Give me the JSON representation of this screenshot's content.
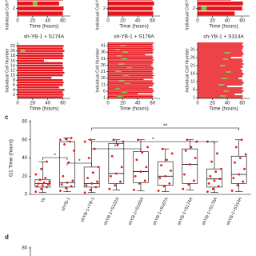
{
  "panel_labels": [
    "c",
    "d"
  ],
  "chart_data": [
    {
      "type": "timeline",
      "xlabel": "Time (hours)",
      "ylabel": "Individual Cell Number",
      "xlim": [
        0,
        70
      ],
      "xticks": [
        0,
        20,
        40,
        60
      ],
      "ylim": [
        0.5,
        8.5
      ],
      "yticks": [
        2,
        4
      ],
      "values": [
        60,
        61,
        55,
        60,
        62,
        60,
        58,
        61
      ],
      "green_start": [
        null,
        null,
        20,
        null,
        null,
        null,
        null,
        null
      ],
      "green_end": [
        null,
        null,
        26,
        null,
        null,
        null,
        null,
        null
      ]
    },
    {
      "type": "timeline",
      "xlabel": "Time (hours)",
      "ylabel": "Individual Cell Number",
      "xlim": [
        0,
        70
      ],
      "xticks": [
        0,
        20,
        40,
        60
      ],
      "ylim": [
        0.5,
        8.5
      ],
      "yticks": [
        2,
        4
      ],
      "values": [
        61,
        60,
        62,
        60,
        61,
        60,
        62,
        60
      ],
      "green_start": [
        null,
        null,
        null,
        null,
        null,
        null,
        null,
        null
      ],
      "green_end": [
        null,
        null,
        null,
        null,
        null,
        null,
        null,
        null
      ]
    },
    {
      "type": "timeline",
      "xlabel": "Time (hours)",
      "ylabel": "Individual Cell Number",
      "xlim": [
        0,
        70
      ],
      "xticks": [
        0,
        20,
        40,
        60
      ],
      "ylim": [
        0.5,
        8.5
      ],
      "yticks": [
        2,
        4
      ],
      "values": [
        50,
        60,
        61,
        45,
        60,
        62,
        60,
        61
      ],
      "green_start": [
        null,
        5,
        null,
        null,
        8,
        null,
        null,
        null
      ],
      "green_end": [
        null,
        12,
        null,
        null,
        14,
        null,
        null,
        null
      ]
    },
    {
      "type": "timeline",
      "title": "sh-YB-1 + S174A",
      "xlabel": "Time (hours)",
      "ylabel": "Individual Cell Number",
      "xlim": [
        0,
        70
      ],
      "xticks": [
        0,
        20,
        40,
        60
      ],
      "ylim": [
        0.5,
        23.5
      ],
      "yticks": [
        2,
        4,
        6,
        8,
        10,
        12,
        14,
        16,
        18,
        20,
        22
      ],
      "values": [
        60,
        61,
        60,
        62,
        55,
        60,
        61,
        60,
        45,
        60,
        62,
        60,
        61,
        60,
        60,
        35,
        60,
        61,
        60,
        62,
        60,
        61
      ],
      "green_start": [
        null,
        null,
        null,
        null,
        null,
        null,
        null,
        null,
        null,
        null,
        null,
        null,
        null,
        null,
        null,
        null,
        null,
        null,
        null,
        4,
        null,
        null
      ],
      "green_end": [
        null,
        null,
        null,
        null,
        null,
        null,
        null,
        null,
        null,
        null,
        null,
        null,
        null,
        null,
        null,
        null,
        null,
        null,
        null,
        10,
        null,
        null
      ]
    },
    {
      "type": "timeline",
      "title": "sh-YB-1 + S176A",
      "xlabel": "Time (hours)",
      "ylabel": "Individual Cell Number",
      "xlim": [
        0,
        70
      ],
      "xticks": [
        0,
        20,
        40,
        60
      ],
      "ylim": [
        0.5,
        43.5
      ],
      "yticks": [
        1,
        6,
        11,
        16,
        21,
        26,
        31,
        36,
        41
      ],
      "values": [
        60,
        61,
        60,
        40,
        60,
        62,
        61,
        60,
        55,
        60,
        61,
        62,
        60,
        60,
        48,
        61,
        60,
        62,
        60,
        61,
        60,
        60,
        62,
        61,
        60,
        58,
        60,
        61,
        60,
        62,
        60,
        61,
        60,
        50,
        60,
        61,
        60,
        62,
        60,
        61,
        60,
        60,
        62
      ],
      "green_start": [
        null,
        12,
        null,
        null,
        18,
        null,
        null,
        10,
        null,
        null,
        null,
        22,
        null,
        15,
        null,
        null,
        null,
        20,
        null,
        null,
        10,
        null,
        null,
        25,
        null,
        null,
        14,
        null,
        null,
        null,
        18,
        null,
        12,
        null,
        null,
        20,
        null,
        10,
        null,
        null,
        16,
        null,
        null
      ],
      "green_end": [
        null,
        20,
        null,
        null,
        26,
        null,
        null,
        16,
        null,
        null,
        null,
        30,
        null,
        22,
        null,
        null,
        null,
        28,
        null,
        null,
        18,
        null,
        null,
        32,
        null,
        null,
        22,
        null,
        null,
        null,
        26,
        null,
        18,
        null,
        null,
        27,
        null,
        16,
        null,
        null,
        24,
        null,
        null
      ]
    },
    {
      "type": "timeline",
      "title": "sh-YB-1 + S314A",
      "xlabel": "Time (hours)",
      "ylabel": "Individual Cell Number",
      "xlim": [
        0,
        70
      ],
      "xticks": [
        0,
        20,
        40,
        60
      ],
      "ylim": [
        0.5,
        35.5
      ],
      "yticks": [
        1,
        6,
        11,
        16,
        21,
        26,
        31
      ],
      "values": [
        60,
        61,
        50,
        60,
        62,
        60,
        61,
        40,
        60,
        62,
        61,
        60,
        55,
        60,
        61,
        62,
        60,
        60,
        58,
        61,
        60,
        62,
        60,
        61,
        60,
        45,
        60,
        62,
        61,
        60,
        60,
        61,
        62,
        60,
        61
      ],
      "green_start": [
        null,
        30,
        null,
        null,
        35,
        null,
        null,
        null,
        28,
        null,
        null,
        null,
        32,
        null,
        null,
        null,
        38,
        null,
        null,
        null,
        30,
        null,
        null,
        null,
        34,
        null,
        null,
        null,
        36,
        null,
        null,
        null,
        null,
        null,
        null
      ],
      "green_end": [
        null,
        38,
        null,
        null,
        42,
        null,
        null,
        null,
        36,
        null,
        null,
        null,
        40,
        null,
        null,
        null,
        45,
        null,
        null,
        null,
        37,
        null,
        null,
        null,
        41,
        null,
        null,
        null,
        44,
        null,
        null,
        null,
        null,
        null,
        null
      ]
    },
    {
      "type": "box",
      "ylabel": "G1 Time (hours)",
      "ylim": [
        0,
        80
      ],
      "yticks": [
        0,
        20,
        40,
        60,
        80
      ],
      "categories": [
        "Vo",
        "shYB-1",
        "shYB-1+YB-1",
        "shYB-1+S102A",
        "shYB-1+S165A",
        "shYB-1+S167A",
        "shYB-1+S174A",
        "shYB-1+S176A",
        "shYB-1+S314A"
      ],
      "whisker_low": [
        2,
        3,
        2,
        5,
        4,
        3,
        5,
        2,
        3
      ],
      "q1": [
        8,
        8,
        8,
        12,
        13,
        10,
        12,
        8,
        12
      ],
      "median": [
        12,
        13,
        12,
        23,
        25,
        20,
        33,
        17,
        22
      ],
      "q3": [
        16,
        58,
        30,
        56,
        47,
        36,
        50,
        28,
        42
      ],
      "whisker_high": [
        36,
        62,
        60,
        60,
        60,
        50,
        60,
        58,
        60
      ],
      "points": [
        [
          3,
          6,
          8,
          9,
          10,
          11,
          12,
          13,
          14,
          16,
          18,
          22,
          28,
          36
        ],
        [
          4,
          7,
          9,
          11,
          13,
          15,
          20,
          35,
          48,
          55,
          58,
          60,
          61,
          62
        ],
        [
          2,
          5,
          8,
          10,
          12,
          14,
          18,
          24,
          30,
          40,
          50,
          58,
          60
        ],
        [
          6,
          10,
          14,
          20,
          23,
          30,
          42,
          55,
          58,
          60
        ],
        [
          5,
          12,
          15,
          20,
          25,
          30,
          38,
          46,
          52,
          60
        ],
        [
          4,
          9,
          12,
          18,
          20,
          26,
          32,
          38,
          45,
          50
        ],
        [
          6,
          11,
          15,
          22,
          33,
          40,
          48,
          52,
          58,
          60
        ],
        [
          3,
          6,
          9,
          12,
          15,
          17,
          20,
          25,
          28,
          36,
          45,
          58
        ],
        [
          4,
          10,
          14,
          18,
          22,
          28,
          35,
          40,
          44,
          52,
          60
        ]
      ],
      "color": "#e31a1c",
      "annotations": [
        {
          "from": "shYB-1+YB-1",
          "to": "shYB-1+S314A",
          "text": "**"
        },
        {
          "from": "shYB-1+YB-1",
          "to": "shYB-1+S176A",
          "text": "*"
        },
        {
          "from": "shYB-1+YB-1",
          "to": "shYB-1+S165A",
          "text": "**"
        },
        {
          "from": "Vo",
          "to": "shYB-1",
          "text": "*"
        },
        {
          "from": "shYB-1",
          "to": "shYB-1+YB-1",
          "text": "*"
        }
      ]
    },
    {
      "type": "box",
      "ylim": [
        0,
        80
      ],
      "yticks": [
        80
      ]
    }
  ]
}
